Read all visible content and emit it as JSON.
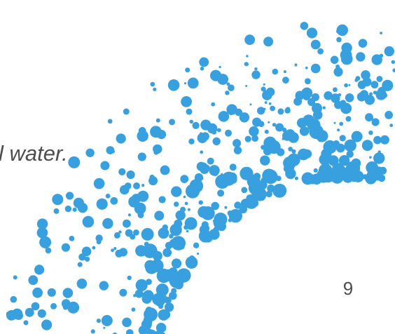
{
  "slide": {
    "text": "l water.",
    "page_number": "9"
  }
}
